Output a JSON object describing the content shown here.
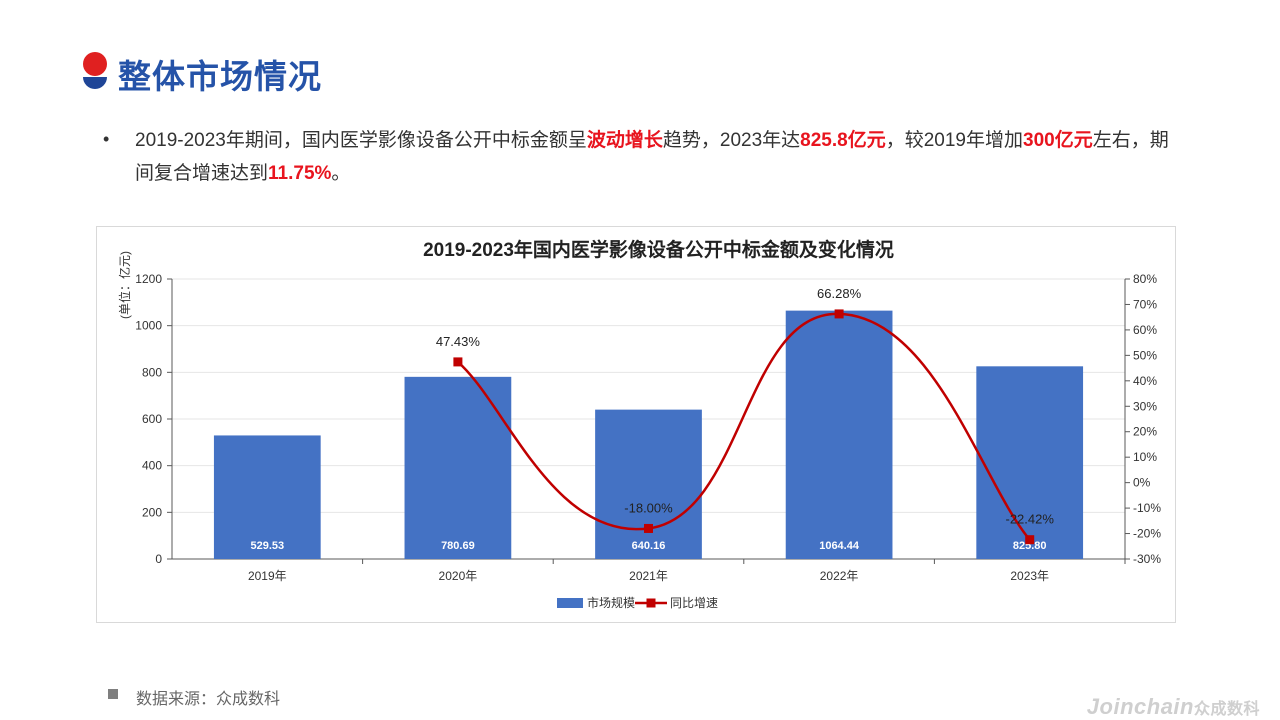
{
  "page": {
    "title": "整体市场情况"
  },
  "summary": {
    "bullet": "•",
    "parts": [
      {
        "text": "2019-2023年期间，国内医学影像设备公开中标金额呈",
        "hl": false
      },
      {
        "text": "波动增长",
        "hl": true
      },
      {
        "text": "趋势，2023年达",
        "hl": false
      },
      {
        "text": "825.8亿元",
        "hl": true
      },
      {
        "text": "，较2019年增加",
        "hl": false
      },
      {
        "text": "300亿元",
        "hl": true
      },
      {
        "text": "左右，期间复合增速达到",
        "hl": false
      },
      {
        "text": "11.75%",
        "hl": true
      },
      {
        "text": "。",
        "hl": false
      }
    ]
  },
  "chart_data": {
    "type": "bar",
    "title": "2019-2023年国内医学影像设备公开中标金额及变化情况",
    "ylabel": "(单位：亿元)",
    "categories": [
      "2019年",
      "2020年",
      "2021年",
      "2022年",
      "2023年"
    ],
    "series": [
      {
        "name": "市场规模",
        "type": "bar",
        "axis": "left",
        "color": "#4472c4",
        "values": [
          529.53,
          780.69,
          640.16,
          1064.44,
          825.8
        ],
        "labels": [
          "529.53",
          "780.69",
          "640.16",
          "1064.44",
          "825.80"
        ]
      },
      {
        "name": "同比增速",
        "type": "line",
        "axis": "right",
        "color": "#c00000",
        "values": [
          null,
          47.43,
          -18.0,
          66.28,
          -22.42
        ],
        "labels": [
          "",
          "47.43%",
          "-18.00%",
          "66.28%",
          "-22.42%"
        ]
      }
    ],
    "y_left": {
      "min": 0,
      "max": 1200,
      "ticks": [
        0,
        200,
        400,
        600,
        800,
        1000,
        1200
      ]
    },
    "y_right": {
      "min": -30,
      "max": 80,
      "ticks": [
        "-30%",
        "-20%",
        "-10%",
        "0%",
        "10%",
        "20%",
        "30%",
        "40%",
        "50%",
        "60%",
        "70%",
        "80%"
      ]
    },
    "grid": true,
    "legend": "bottom"
  },
  "footer": {
    "source": "数据来源：众成数科",
    "watermark_en": "Joinchain",
    "watermark_cn": "众成数科"
  }
}
